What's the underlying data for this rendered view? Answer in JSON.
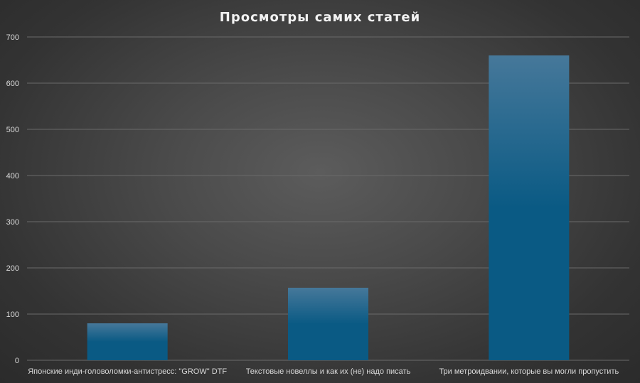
{
  "chart_data": {
    "type": "bar",
    "title": "Просмотры самих статей",
    "xlabel": "",
    "ylabel": "",
    "categories": [
      "Японские инди-головоломки-антистресс: \"GROW\" DTF",
      "Текстовые новеллы и как их (не) надо писать",
      "Три метроидвании, которые вы могли пропустить"
    ],
    "values": [
      80,
      157,
      660
    ],
    "ylim": [
      0,
      700
    ],
    "yticks": [
      0,
      100,
      200,
      300,
      400,
      500,
      600,
      700
    ],
    "grid": true,
    "legend": "none",
    "colors": {
      "bar_top": "#46789a",
      "bar_bottom": "#0a5a84",
      "grid": "#6a6a6a",
      "text": "#d9d9d9"
    }
  }
}
